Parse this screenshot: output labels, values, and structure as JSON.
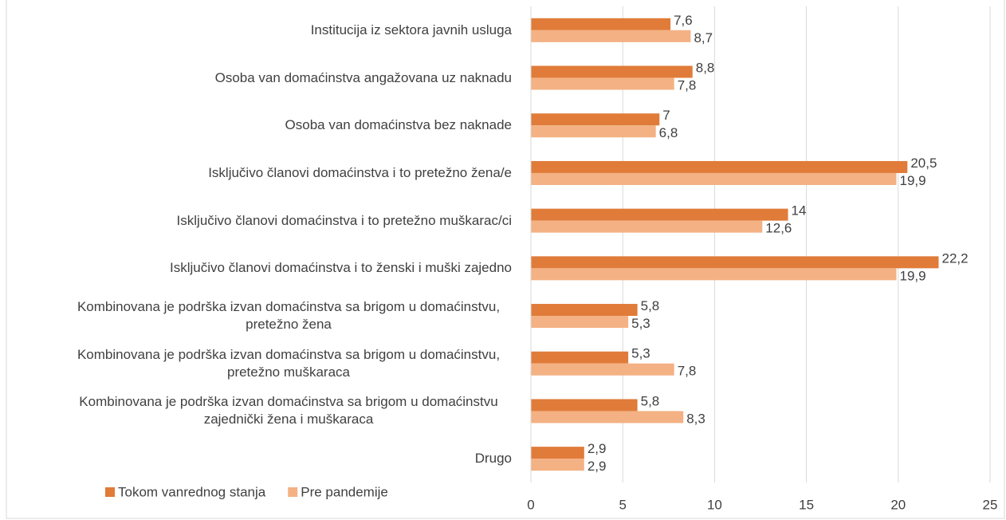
{
  "chart_data": {
    "type": "bar",
    "orientation": "horizontal",
    "categories": [
      "Institucija iz sektora javnih usluga",
      "Osoba van domaćinstva angažovana uz naknadu",
      "Osoba van domaćinstva bez naknade",
      "Isključivo članovi domaćinstva i to pretežno žena/e",
      "Isključivo članovi domaćinstva i to pretežno muškarac/ci",
      "Isključivo članovi domaćinstva i to ženski i muški zajedno",
      "Kombinovana je podrška izvan domaćinstva sa brigom u domaćinstvu, pretežno žena",
      "Kombinovana je podrška izvan domaćinstva sa brigom u domaćinstvu, pretežno muškaraca",
      "Kombinovana je podrška izvan domaćinstva sa brigom u domaćinstvu zajednički žena i muškaraca",
      "Drugo"
    ],
    "series": [
      {
        "name": "Tokom vanrednog stanja",
        "color": "#e07b39",
        "values": [
          7.6,
          8.8,
          7,
          20.5,
          14,
          22.2,
          5.8,
          5.3,
          5.8,
          2.9
        ],
        "value_labels": [
          "7,6",
          "8,8",
          "7",
          "20,5",
          "14",
          "22,2",
          "5,8",
          "5,3",
          "5,8",
          "2,9"
        ]
      },
      {
        "name": "Pre pandemije",
        "color": "#f4b183",
        "values": [
          8.7,
          7.8,
          6.8,
          19.9,
          12.6,
          19.9,
          5.3,
          7.8,
          8.3,
          2.9
        ],
        "value_labels": [
          "8,7",
          "7,8",
          "6,8",
          "19,9",
          "12,6",
          "19,9",
          "5,3",
          "7,8",
          "8,3",
          "2,9"
        ]
      }
    ],
    "xlim": [
      0,
      25
    ],
    "xticks": [
      0,
      5,
      10,
      15,
      20,
      25
    ],
    "grid": true,
    "legend": "bottom-left"
  }
}
